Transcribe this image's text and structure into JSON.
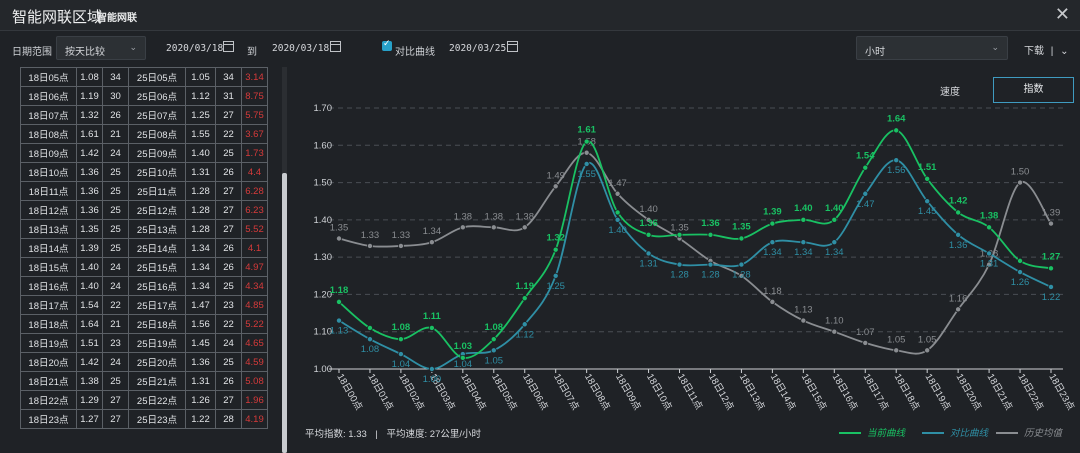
{
  "window": {
    "title": "智能网联区域",
    "subtitle": "智能网联",
    "close_icon": "close-icon"
  },
  "toolbar": {
    "date_range_label": "日期范围",
    "compare_mode": "按天比较",
    "start_date": "2020/03/18",
    "to_label": "到",
    "end_date": "2020/03/18",
    "compare_checkbox_label": "对比曲线",
    "compare_date": "2020/03/25",
    "granularity": "小时",
    "download_label": "下载",
    "download_separator": "|"
  },
  "table": {
    "rows": [
      [
        "18日05点",
        "1.08",
        "34",
        "25日05点",
        "1.05",
        "34",
        "3.14"
      ],
      [
        "18日06点",
        "1.19",
        "30",
        "25日06点",
        "1.12",
        "31",
        "8.75"
      ],
      [
        "18日07点",
        "1.32",
        "26",
        "25日07点",
        "1.25",
        "27",
        "5.75"
      ],
      [
        "18日08点",
        "1.61",
        "21",
        "25日08点",
        "1.55",
        "22",
        "3.67"
      ],
      [
        "18日09点",
        "1.42",
        "24",
        "25日09点",
        "1.40",
        "25",
        "1.73"
      ],
      [
        "18日10点",
        "1.36",
        "25",
        "25日10点",
        "1.31",
        "26",
        "4.4"
      ],
      [
        "18日11点",
        "1.36",
        "25",
        "25日11点",
        "1.28",
        "27",
        "6.28"
      ],
      [
        "18日12点",
        "1.36",
        "25",
        "25日12点",
        "1.28",
        "27",
        "6.23"
      ],
      [
        "18日13点",
        "1.35",
        "25",
        "25日13点",
        "1.28",
        "27",
        "5.52"
      ],
      [
        "18日14点",
        "1.39",
        "25",
        "25日14点",
        "1.34",
        "26",
        "4.1"
      ],
      [
        "18日15点",
        "1.40",
        "24",
        "25日15点",
        "1.34",
        "26",
        "4.97"
      ],
      [
        "18日16点",
        "1.40",
        "24",
        "25日16点",
        "1.34",
        "25",
        "4.34"
      ],
      [
        "18日17点",
        "1.54",
        "22",
        "25日17点",
        "1.47",
        "23",
        "4.85"
      ],
      [
        "18日18点",
        "1.64",
        "21",
        "25日18点",
        "1.56",
        "22",
        "5.22"
      ],
      [
        "18日19点",
        "1.51",
        "23",
        "25日19点",
        "1.45",
        "24",
        "4.65"
      ],
      [
        "18日20点",
        "1.42",
        "24",
        "25日20点",
        "1.36",
        "25",
        "4.59"
      ],
      [
        "18日21点",
        "1.38",
        "25",
        "25日21点",
        "1.31",
        "26",
        "5.08"
      ],
      [
        "18日22点",
        "1.29",
        "27",
        "25日22点",
        "1.26",
        "27",
        "1.96"
      ],
      [
        "18日23点",
        "1.27",
        "27",
        "25日23点",
        "1.22",
        "28",
        "4.19"
      ]
    ]
  },
  "tabs": {
    "speed": "速度",
    "index": "指数"
  },
  "footer": {
    "avg_index": "平均指数: 1.33",
    "separator": "|",
    "avg_speed": "平均速度: 27公里/小时"
  },
  "colors": {
    "current": "#19c163",
    "compare": "#2f8fa5",
    "history": "#8a8d91",
    "red": "#d63a3a"
  },
  "chart_data": {
    "type": "line",
    "categories": [
      "18日00点",
      "18日01点",
      "18日02点",
      "18日03点",
      "18日04点",
      "18日05点",
      "18日06点",
      "18日07点",
      "18日08点",
      "18日09点",
      "18日10点",
      "18日11点",
      "18日12点",
      "18日13点",
      "18日14点",
      "18日15点",
      "18日16点",
      "18日17点",
      "18日18点",
      "18日19点",
      "18日20点",
      "18日21点",
      "18日22点",
      "18日23点"
    ],
    "yticks": [
      "1.00",
      "1.10",
      "1.20",
      "1.30",
      "1.40",
      "1.50",
      "1.60",
      "1.70"
    ],
    "ylim": [
      1.0,
      1.7
    ],
    "grid": true,
    "legend_position": "bottom-right",
    "series": [
      {
        "name": "当前曲线",
        "color": "#19c163",
        "values": [
          1.18,
          1.11,
          1.08,
          1.11,
          1.03,
          1.08,
          1.19,
          1.32,
          1.61,
          1.42,
          1.36,
          1.36,
          1.36,
          1.35,
          1.39,
          1.4,
          1.4,
          1.54,
          1.64,
          1.51,
          1.42,
          1.38,
          1.29,
          1.27
        ],
        "labels": [
          "1.18",
          "",
          "1.08",
          "1.11",
          "1.03",
          "1.08",
          "1.19",
          "1.32",
          "1.61",
          "",
          "1.36",
          "",
          "1.36",
          "1.35",
          "1.39",
          "1.40",
          "1.40",
          "1.54",
          "1.64",
          "1.51",
          "1.42",
          "1.38",
          "",
          "1.27"
        ]
      },
      {
        "name": "对比曲线",
        "color": "#2f8fa5",
        "values": [
          1.13,
          1.08,
          1.04,
          1.0,
          1.04,
          1.05,
          1.12,
          1.25,
          1.55,
          1.4,
          1.31,
          1.28,
          1.28,
          1.28,
          1.34,
          1.34,
          1.34,
          1.47,
          1.56,
          1.45,
          1.36,
          1.31,
          1.26,
          1.22
        ],
        "labels": [
          "1.13",
          "1.08",
          "1.04",
          "1.00",
          "1.04",
          "1.05",
          "1.12",
          "1.25",
          "1.55",
          "1.40",
          "1.31",
          "1.28",
          "1.28",
          "1.28",
          "1.34",
          "1.34",
          "1.34",
          "1.47",
          "1.56",
          "1.45",
          "1.36",
          "1.31",
          "1.26",
          "1.22"
        ]
      },
      {
        "name": "历史均值",
        "color": "#8a8d91",
        "values": [
          1.35,
          1.33,
          1.33,
          1.34,
          1.38,
          1.38,
          1.38,
          1.49,
          1.58,
          1.47,
          1.4,
          1.35,
          1.29,
          1.25,
          1.18,
          1.13,
          1.1,
          1.07,
          1.05,
          1.05,
          1.16,
          1.28,
          1.5,
          1.39
        ],
        "labels": [
          "1.35",
          "1.33",
          "1.33",
          "1.34",
          "1.38",
          "1.38",
          "1.38",
          "1.49",
          "1.58",
          "1.47",
          "1.40",
          "1.35",
          "",
          "",
          "1.18",
          "1.13",
          "1.10",
          "1.07",
          "1.05",
          "1.05",
          "1.16",
          "1.28",
          "1.50",
          "1.39"
        ]
      }
    ]
  }
}
